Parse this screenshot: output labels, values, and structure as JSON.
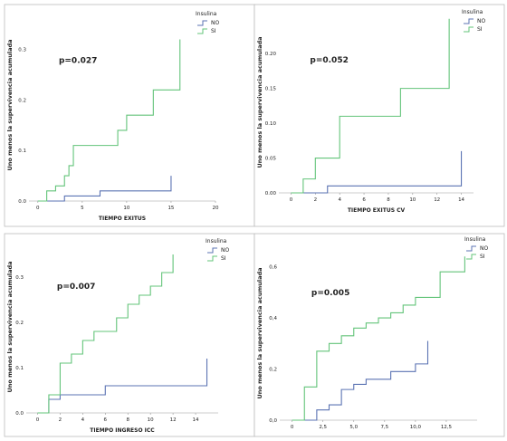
{
  "chart_data": [
    {
      "type": "line",
      "subtype": "step",
      "ylabel": "Uno menos la supervivencia acumulada",
      "xlabel": "TIEMPO EXITUS",
      "annotation": "p=0.027",
      "legend_title": "Insulina",
      "legend_placement": "top-right",
      "xlim": [
        -1,
        20
      ],
      "ylim": [
        0,
        0.38
      ],
      "xticks": [
        0,
        5,
        10,
        15,
        20
      ],
      "xtick_labels": [
        "0",
        "5",
        "10",
        "15",
        "20"
      ],
      "yticks": [
        0,
        0.1,
        0.2,
        0.3
      ],
      "ytick_labels": [
        "0.0",
        "0.1",
        "0.2",
        "0.3"
      ],
      "series": [
        {
          "name": "NO",
          "color": "#5b73b3",
          "x": [
            0,
            3,
            7,
            15,
            15
          ],
          "y": [
            0,
            0.01,
            0.02,
            0.02,
            0.05
          ]
        },
        {
          "name": "SI",
          "color": "#63c47a",
          "x": [
            0,
            1,
            2,
            3,
            3.5,
            4,
            9,
            10,
            13,
            15,
            16,
            16
          ],
          "y": [
            0,
            0.02,
            0.03,
            0.05,
            0.07,
            0.11,
            0.14,
            0.17,
            0.22,
            0.22,
            0.26,
            0.32
          ]
        }
      ]
    },
    {
      "type": "line",
      "subtype": "step",
      "ylabel": "Uno menos la supervivencia acumulada",
      "xlabel": "TIEMPO EXITUS CV",
      "annotation": "p=0.052",
      "legend_title": "Insulina",
      "legend_placement": "top-right",
      "xlim": [
        -1,
        15
      ],
      "ylim": [
        0,
        0.26
      ],
      "xticks": [
        0,
        2,
        4,
        6,
        8,
        10,
        12,
        14
      ],
      "xtick_labels": [
        "0",
        "2",
        "4",
        "6",
        "8",
        "10",
        "12",
        "14"
      ],
      "yticks": [
        0,
        0.05,
        0.1,
        0.15,
        0.2
      ],
      "ytick_labels": [
        "0.00",
        "0.05",
        "0.10",
        "0.15",
        "0.20"
      ],
      "series": [
        {
          "name": "NO",
          "color": "#5b73b3",
          "x": [
            0,
            3,
            14,
            14
          ],
          "y": [
            0,
            0.01,
            0.01,
            0.06
          ]
        },
        {
          "name": "SI",
          "color": "#63c47a",
          "x": [
            0,
            1,
            2,
            4,
            9,
            13,
            13
          ],
          "y": [
            0,
            0.02,
            0.05,
            0.11,
            0.15,
            0.19,
            0.25
          ]
        }
      ]
    },
    {
      "type": "line",
      "subtype": "step",
      "ylabel": "Uno menos la supervivencia acumulada",
      "xlabel": "TIEMPO INGRESO ICC",
      "annotation": "p=0.007",
      "legend_title": "Insulina",
      "legend_placement": "top-right",
      "xlim": [
        -1,
        16
      ],
      "ylim": [
        0,
        0.38
      ],
      "xticks": [
        0,
        2,
        4,
        6,
        8,
        10,
        12,
        14
      ],
      "xtick_labels": [
        "0",
        "2",
        "4",
        "6",
        "8",
        "10",
        "12",
        "14"
      ],
      "yticks": [
        0,
        0.1,
        0.2,
        0.3
      ],
      "ytick_labels": [
        "0.0",
        "0.1",
        "0.2",
        "0.3"
      ],
      "series": [
        {
          "name": "NO",
          "color": "#5b73b3",
          "x": [
            0,
            1,
            2,
            6,
            15,
            15
          ],
          "y": [
            0,
            0.03,
            0.04,
            0.06,
            0.06,
            0.12
          ]
        },
        {
          "name": "SI",
          "color": "#63c47a",
          "x": [
            0,
            1,
            2,
            3,
            4,
            5,
            7,
            8,
            9,
            10,
            11,
            12,
            12
          ],
          "y": [
            0,
            0.04,
            0.11,
            0.13,
            0.16,
            0.18,
            0.21,
            0.24,
            0.26,
            0.28,
            0.31,
            0.34,
            0.35
          ]
        }
      ]
    },
    {
      "type": "line",
      "subtype": "step",
      "ylabel": "Uno menos la supervivencia acumulada",
      "xlabel": "",
      "annotation": "p=0.005",
      "legend_title": "Insulina",
      "legend_placement": "top-right",
      "xlim": [
        -1,
        15
      ],
      "ylim": [
        0,
        0.68
      ],
      "xticks": [
        0,
        2.5,
        5,
        7.5,
        10,
        12.5
      ],
      "xtick_labels": [
        "0",
        "2,5",
        "5,0",
        "7,5",
        "10,0",
        "12,5"
      ],
      "yticks": [
        0,
        0.2,
        0.4,
        0.6
      ],
      "ytick_labels": [
        "0,0",
        "0,2",
        "0,4",
        "0,6"
      ],
      "series": [
        {
          "name": "NO",
          "color": "#5b73b3",
          "x": [
            0,
            2,
            3,
            4,
            5,
            6,
            8,
            10,
            11,
            11
          ],
          "y": [
            0,
            0.04,
            0.06,
            0.12,
            0.14,
            0.16,
            0.19,
            0.22,
            0.26,
            0.31
          ]
        },
        {
          "name": "SI",
          "color": "#63c47a",
          "x": [
            0,
            1,
            2,
            3,
            4,
            5,
            6,
            7,
            8,
            9,
            10,
            12,
            14,
            14
          ],
          "y": [
            0,
            0.13,
            0.27,
            0.3,
            0.33,
            0.36,
            0.38,
            0.4,
            0.42,
            0.45,
            0.48,
            0.58,
            0.62,
            0.64
          ]
        }
      ]
    }
  ]
}
